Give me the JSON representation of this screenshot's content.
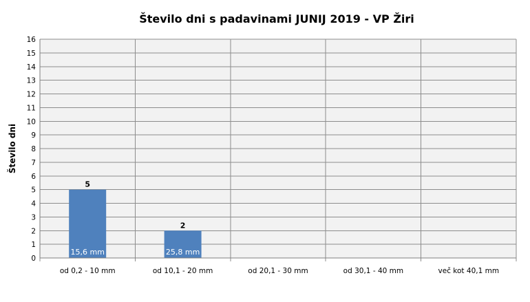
{
  "chart_data": {
    "type": "bar",
    "title": "Število dni s padavinami  JUNIJ 2019 - VP Žiri",
    "xlabel": "",
    "ylabel": "Število dni",
    "ylim": [
      0,
      16
    ],
    "yticks": [
      0,
      1,
      2,
      3,
      4,
      5,
      6,
      7,
      8,
      9,
      10,
      11,
      12,
      13,
      14,
      15,
      16
    ],
    "categories": [
      "od 0,2 - 10 mm",
      "od 10,1 - 20 mm",
      "od 20,1 - 30 mm",
      "od 30,1 - 40 mm",
      "več kot 40,1 mm"
    ],
    "values": [
      5,
      2,
      0,
      0,
      0
    ],
    "data_labels": [
      "5",
      "2",
      "",
      "",
      ""
    ],
    "bar_inner_labels": [
      "15,6 mm",
      "25,8 mm",
      "",
      "",
      ""
    ],
    "grid": true,
    "bar_color": "#4f81bd",
    "plot_background": "#f2f2f2",
    "grid_color": "#8c8c8c"
  }
}
